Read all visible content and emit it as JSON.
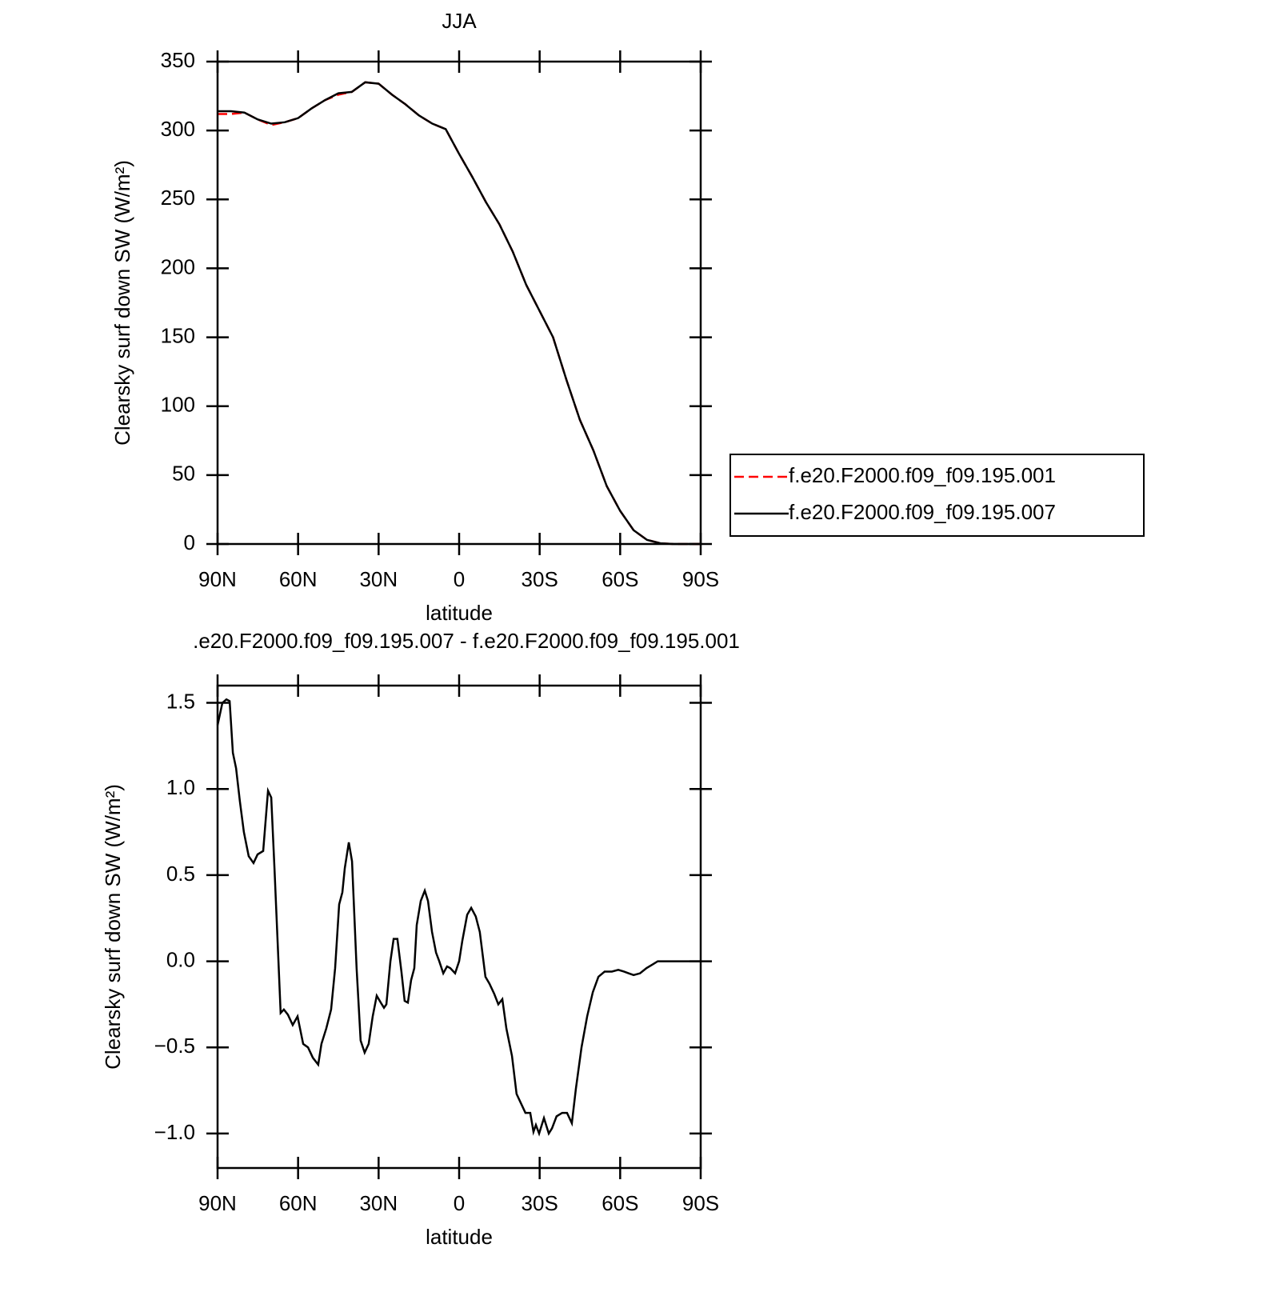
{
  "chart_data": [
    {
      "type": "line",
      "title": "JJA",
      "xlabel": "latitude",
      "ylabel": "Clearsky surf down SW (W/m²)",
      "x": [
        90,
        85,
        80,
        75,
        70,
        65,
        60,
        55,
        50,
        45,
        40,
        35,
        30,
        25,
        20,
        15,
        10,
        5,
        0,
        -5,
        -10,
        -15,
        -20,
        -25,
        -30,
        -35,
        -40,
        -45,
        -50,
        -55,
        -60,
        -65,
        -70,
        -75,
        -80,
        -85,
        -90
      ],
      "series": [
        {
          "name": "f.e20.F2000.f09_f09.195.001",
          "color": "#ff0000",
          "dash": true,
          "values": [
            312,
            312,
            313,
            308,
            304,
            306,
            309,
            316,
            322,
            326,
            328,
            335,
            334,
            326,
            319,
            311,
            305,
            301,
            283,
            266,
            248,
            232,
            212,
            188,
            169,
            150,
            119,
            90,
            68,
            42,
            24,
            10,
            3,
            0.5,
            0,
            0,
            0
          ]
        },
        {
          "name": "f.e20.F2000.f09_f09.195.007",
          "color": "#000000",
          "dash": false,
          "values": [
            314,
            314,
            313,
            308,
            305,
            306,
            309,
            316,
            322,
            327,
            328,
            335,
            334,
            326,
            319,
            311,
            305,
            301,
            283,
            266,
            248,
            232,
            212,
            188,
            169,
            150,
            119,
            90,
            68,
            42,
            24,
            10,
            3,
            0.5,
            0,
            0,
            0
          ]
        }
      ],
      "xlim": [
        90,
        -90
      ],
      "xticks": [
        {
          "value": 90,
          "label": "90N"
        },
        {
          "value": 60,
          "label": "60N"
        },
        {
          "value": 30,
          "label": "30N"
        },
        0,
        {
          "value": -30,
          "label": "30S"
        },
        {
          "value": -60,
          "label": "60S"
        },
        {
          "value": -90,
          "label": "90S"
        }
      ],
      "ylim": [
        0,
        350
      ],
      "yticks": [
        0,
        50,
        100,
        150,
        200,
        250,
        300,
        350
      ],
      "legend": "right"
    },
    {
      "type": "line",
      "title": ".e20.F2000.f09_f09.195.007 - f.e20.F2000.f09_f09.195.001",
      "xlabel": "latitude",
      "ylabel": "Clearsky surf down SW (W/m²)",
      "x": [
        90,
        88.2,
        86.7,
        85.5,
        84.3,
        83.1,
        81.7,
        80.2,
        78.4,
        76.6,
        75.1,
        73,
        71.2,
        70,
        68.8,
        67.7,
        66.5,
        65.3,
        63.8,
        62,
        60.2,
        58.1,
        56.3,
        54.5,
        52.5,
        51.3,
        49.5,
        47.7,
        46.2,
        44.7,
        43.5,
        42.6,
        41.1,
        39.9,
        38.2,
        36.7,
        35.2,
        33.7,
        32.2,
        30.7,
        29.2,
        28,
        27.1,
        25.6,
        24.4,
        23,
        21.5,
        20.3,
        19.1,
        17.9,
        16.7,
        15.8,
        14.3,
        12.8,
        11.6,
        10.1,
        8.6,
        7.4,
        5.9,
        4.5,
        3.3,
        1.5,
        0,
        -1.2,
        -3,
        -4.5,
        -6.2,
        -7.7,
        -9.8,
        -11.3,
        -13.1,
        -14.6,
        -16.1,
        -17.6,
        -19.7,
        -21.4,
        -23.2,
        -24.7,
        -26.5,
        -27.7,
        -28.6,
        -29.8,
        -31.6,
        -33.4,
        -34.6,
        -36.3,
        -38.4,
        -40.2,
        -42,
        -43.5,
        -45.6,
        -47.7,
        -49.8,
        -51.9,
        -54.2,
        -56.9,
        -59.3,
        -61.4,
        -63.2,
        -65,
        -67.4,
        -69.8,
        -71.9,
        -74,
        -76.4,
        -79.4,
        -85.3,
        -90
      ],
      "values": [
        1.37,
        1.5,
        1.52,
        1.51,
        1.21,
        1.12,
        0.93,
        0.75,
        0.61,
        0.57,
        0.62,
        0.64,
        0.99,
        0.95,
        0.54,
        0.14,
        -0.3,
        -0.28,
        -0.31,
        -0.37,
        -0.32,
        -0.48,
        -0.5,
        -0.56,
        -0.6,
        -0.48,
        -0.39,
        -0.28,
        -0.04,
        0.33,
        0.4,
        0.54,
        0.69,
        0.58,
        -0.04,
        -0.46,
        -0.53,
        -0.48,
        -0.32,
        -0.2,
        -0.24,
        -0.27,
        -0.25,
        0,
        0.13,
        0.13,
        -0.06,
        -0.23,
        -0.24,
        -0.11,
        -0.04,
        0.21,
        0.35,
        0.41,
        0.35,
        0.17,
        0.05,
        0,
        -0.07,
        -0.03,
        -0.04,
        -0.07,
        0,
        0.12,
        0.27,
        0.31,
        0.26,
        0.17,
        -0.09,
        -0.13,
        -0.19,
        -0.25,
        -0.22,
        -0.39,
        -0.55,
        -0.77,
        -0.83,
        -0.88,
        -0.88,
        -0.99,
        -0.95,
        -1.0,
        -0.91,
        -1.0,
        -0.97,
        -0.9,
        -0.88,
        -0.88,
        -0.94,
        -0.74,
        -0.5,
        -0.32,
        -0.18,
        -0.09,
        -0.06,
        -0.06,
        -0.05,
        -0.06,
        -0.07,
        -0.08,
        -0.07,
        -0.04,
        -0.02,
        0,
        0,
        0,
        0,
        0
      ],
      "color": "#000000",
      "xlim": [
        90,
        -90
      ],
      "xticks": [
        {
          "value": 90,
          "label": "90N"
        },
        {
          "value": 60,
          "label": "60N"
        },
        {
          "value": 30,
          "label": "30N"
        },
        0,
        {
          "value": -30,
          "label": "30S"
        },
        {
          "value": -60,
          "label": "60S"
        },
        {
          "value": -90,
          "label": "90S"
        }
      ],
      "ylim": [
        -1.2,
        1.6
      ],
      "yticks": [
        {
          "value": -1.0,
          "label": "−1.0"
        },
        {
          "value": -0.5,
          "label": "−0.5"
        },
        {
          "value": 0,
          "label": "0.0"
        },
        0.5,
        {
          "value": 1.0,
          "label": "1.0"
        },
        1.5
      ]
    }
  ]
}
